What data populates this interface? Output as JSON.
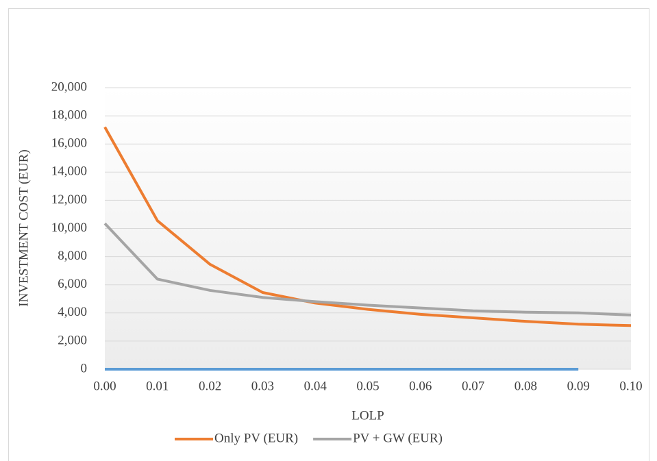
{
  "chart_data": {
    "type": "line",
    "x_label": "LOLP",
    "y_label": "INVESTMENT COST (EUR)",
    "x": [
      0,
      0.01,
      0.02,
      0.03,
      0.04,
      0.05,
      0.06,
      0.07,
      0.08,
      0.09,
      0.1
    ],
    "series": [
      {
        "color": "#5b9bd5",
        "values": [
          0,
          0,
          0,
          0,
          0,
          0,
          0,
          0,
          0,
          0,
          null
        ]
      },
      {
        "name": "Only PV (EUR)",
        "color": "#ed7d31",
        "values": [
          17200,
          10550,
          7450,
          5450,
          4700,
          4250,
          3900,
          3650,
          3400,
          3200,
          3100
        ]
      },
      {
        "name": "PV + GW (EUR)",
        "color": "#a5a5a5",
        "values": [
          10350,
          6400,
          5600,
          5100,
          4800,
          4550,
          4350,
          4150,
          4050,
          4000,
          3850
        ]
      }
    ],
    "xlim": [
      0,
      0.1
    ],
    "xticks": [
      {
        "value": 0,
        "label": "0.00"
      },
      {
        "value": 0.01,
        "label": "0.01"
      },
      {
        "value": 0.02,
        "label": "0.02"
      },
      {
        "value": 0.03,
        "label": "0.03"
      },
      {
        "value": 0.04,
        "label": "0.04"
      },
      {
        "value": 0.05,
        "label": "0.05"
      },
      {
        "value": 0.06,
        "label": "0.06"
      },
      {
        "value": 0.07,
        "label": "0.07"
      },
      {
        "value": 0.08,
        "label": "0.08"
      },
      {
        "value": 0.09,
        "label": "0.09"
      },
      {
        "value": 0.1,
        "label": "0.10"
      }
    ],
    "ylim": [
      0,
      20000
    ],
    "yticks": [
      0,
      {
        "value": 2000,
        "label": "2,000"
      },
      {
        "value": 4000,
        "label": "4,000"
      },
      {
        "value": 6000,
        "label": "6,000"
      },
      {
        "value": 8000,
        "label": "8,000"
      },
      {
        "value": 10000,
        "label": "10,000"
      },
      {
        "value": 12000,
        "label": "12,000"
      },
      {
        "value": 14000,
        "label": "14,000"
      },
      {
        "value": 16000,
        "label": "16,000"
      },
      {
        "value": 18000,
        "label": "18,000"
      },
      {
        "value": 20000,
        "label": "20,000"
      }
    ],
    "grid": true,
    "legend": "bottom"
  }
}
